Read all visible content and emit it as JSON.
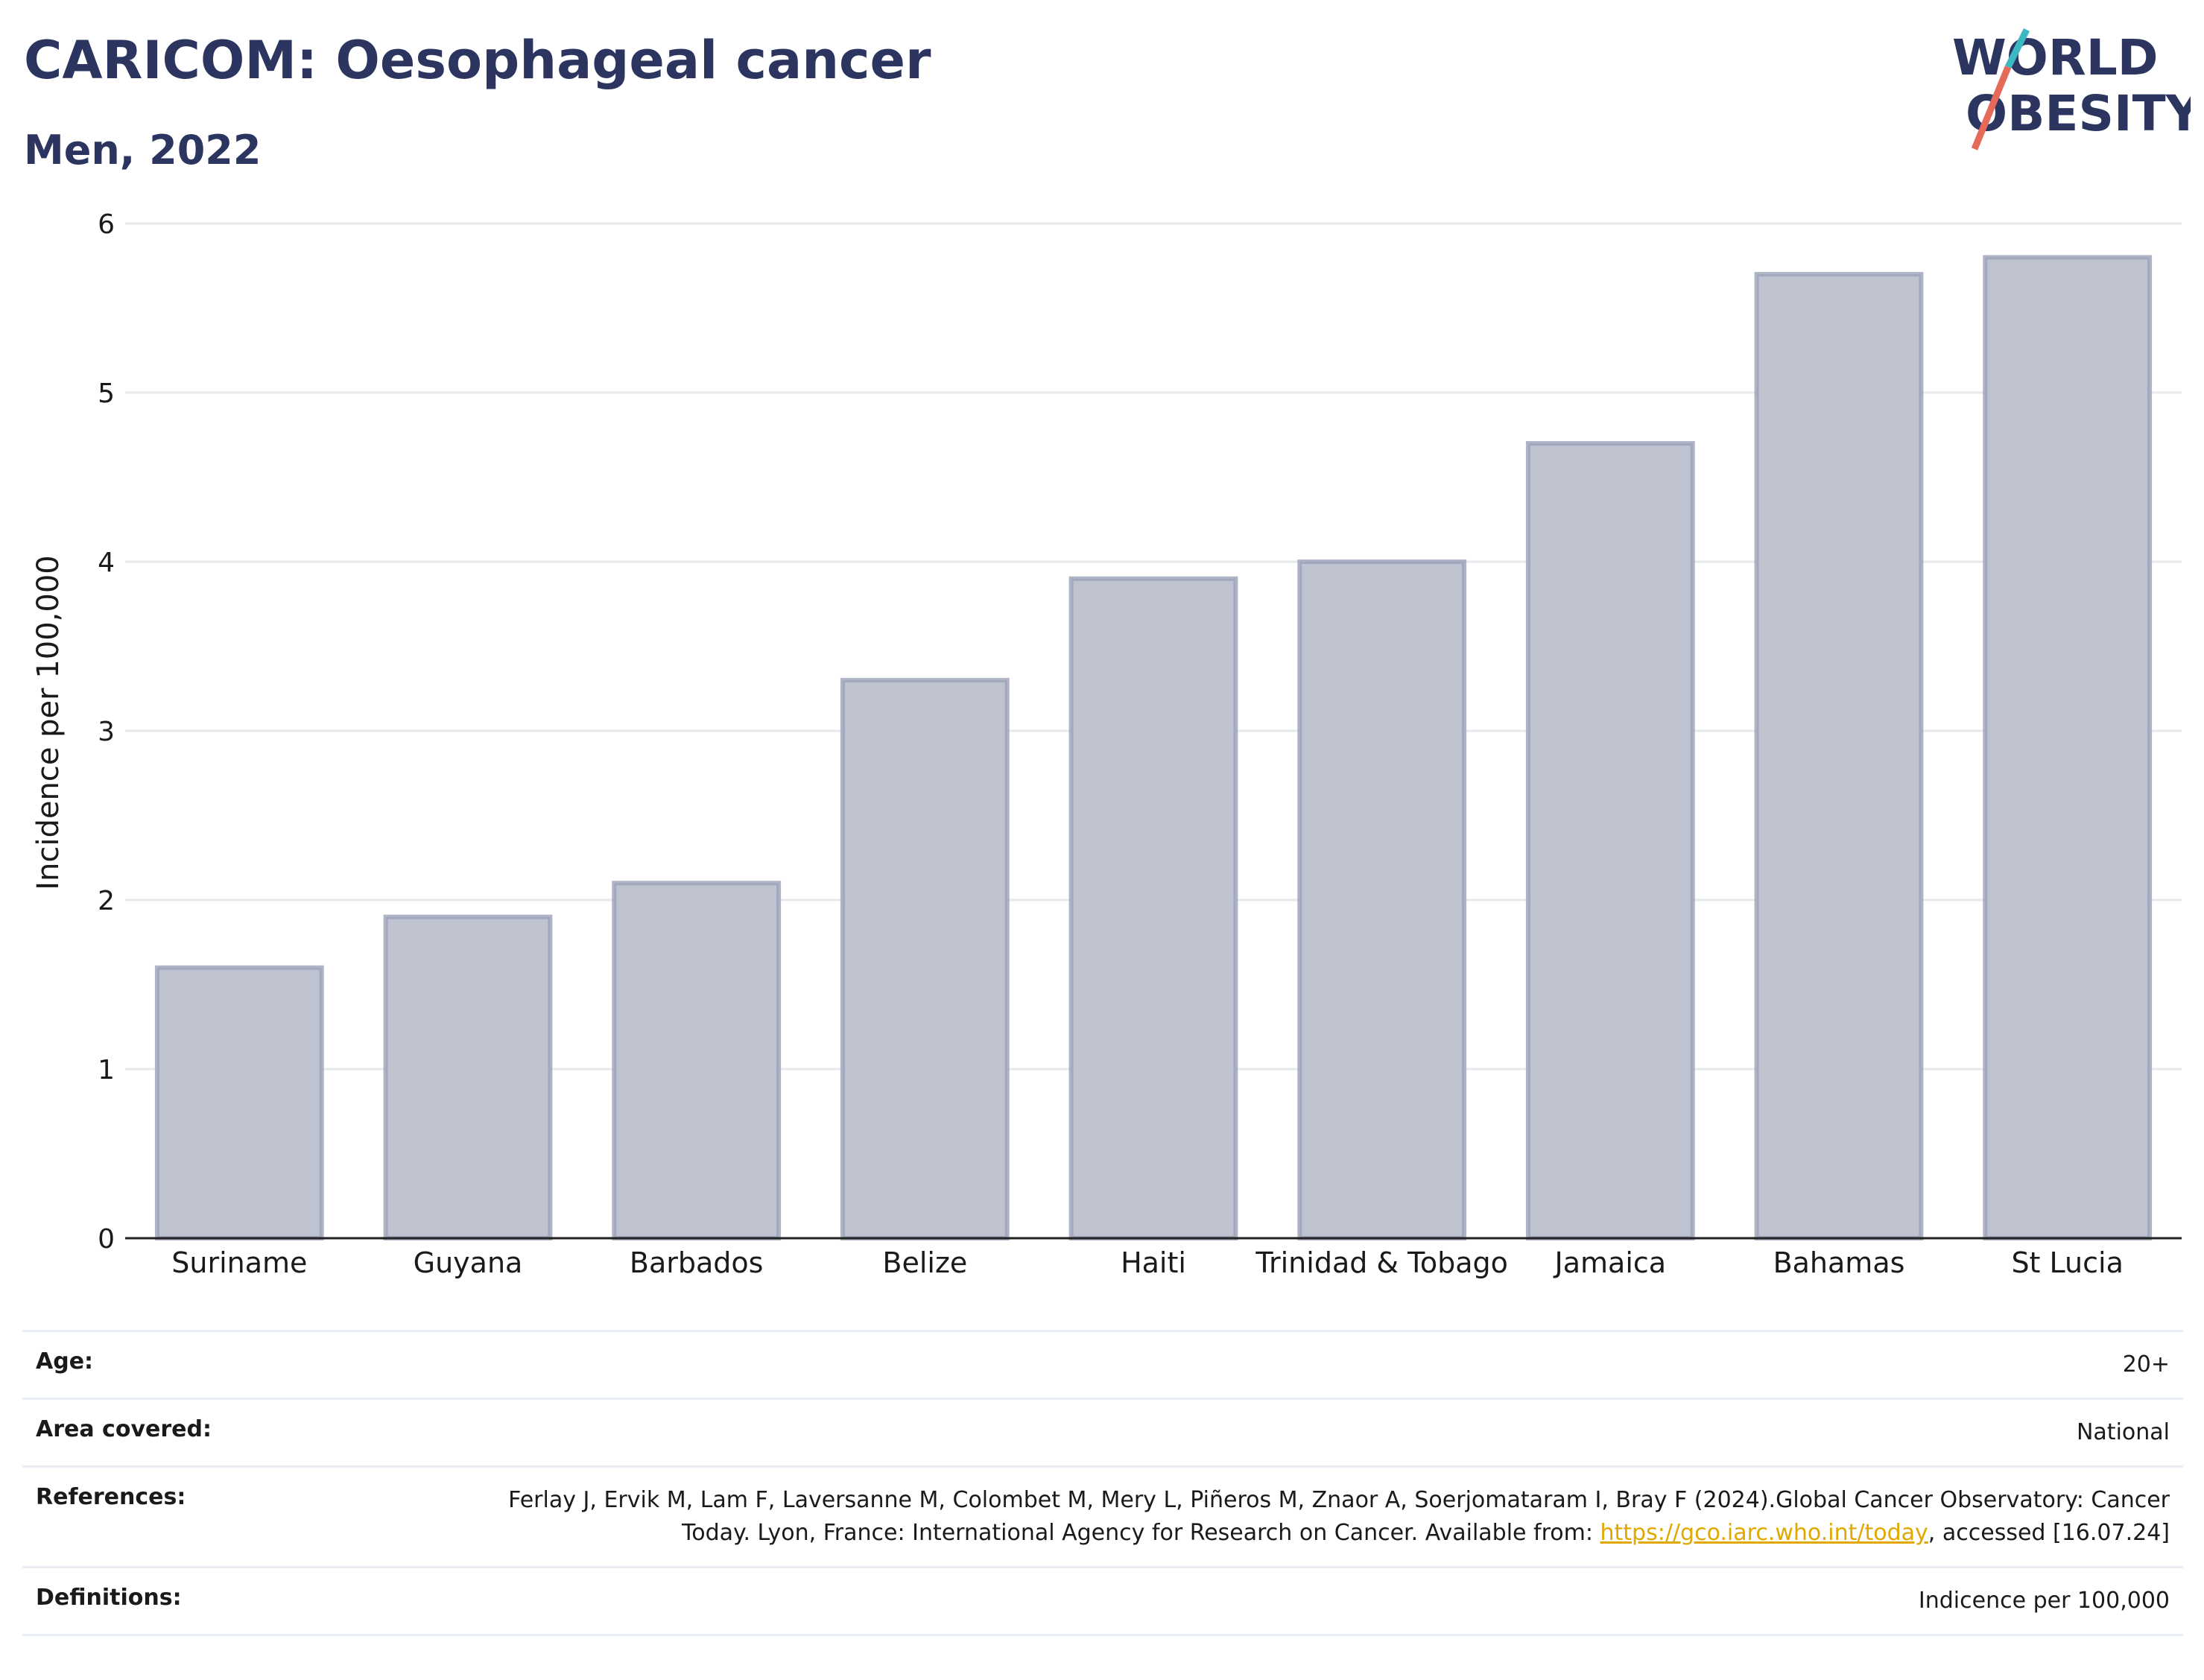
{
  "header": {
    "title": "CARICOM: Oesophageal cancer",
    "subtitle": "Men, 2022"
  },
  "logo": {
    "line1": "WORLD",
    "line2": "OBESITY",
    "accent_colors": [
      "#3bb8c0",
      "#e66a5a"
    ]
  },
  "chart_data": {
    "type": "bar",
    "categories": [
      "Suriname",
      "Guyana",
      "Barbados",
      "Belize",
      "Haiti",
      "Trinidad & Tobago",
      "Jamaica",
      "Bahamas",
      "St Lucia"
    ],
    "values": [
      1.6,
      1.9,
      2.1,
      3.3,
      3.9,
      4.0,
      4.7,
      5.7,
      5.8
    ],
    "title": "",
    "xlabel": "",
    "ylabel": "Incidence per 100,000",
    "ylim": [
      0,
      6
    ],
    "yticks": [
      0,
      1,
      2,
      3,
      4,
      5,
      6
    ],
    "grid": true,
    "bar_fill": "#bfc3d0",
    "bar_stroke": "#9ba1b8"
  },
  "meta": {
    "age_label": "Age:",
    "age_value": "20+",
    "area_label": "Area covered:",
    "area_value": "National",
    "references_label": "References:",
    "references_text": "Ferlay J, Ervik M, Lam F, Laversanne M, Colombet M, Mery L, Piñeros M, Znaor A, Soerjomataram I, Bray F (2024).Global Cancer Observatory: Cancer Today. Lyon, France: International Agency for Research on Cancer. Available from: ",
    "references_link": "https://gco.iarc.who.int/today",
    "references_tail": ", accessed [16.07.24]",
    "definitions_label": "Definitions:",
    "definitions_value": "Indicence per 100,000"
  }
}
